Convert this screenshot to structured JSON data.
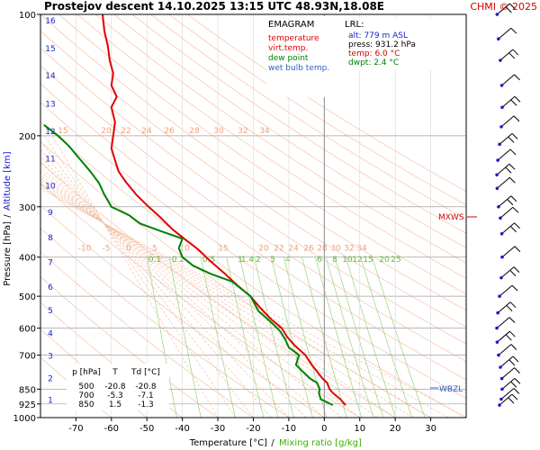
{
  "header": {
    "title": "Prostejov   descent   14.10.2025 13:15 UTC  48.93N,18.08E",
    "copyright": "CHMI © 2025"
  },
  "legend": {
    "title": "EMAGRAM",
    "items": [
      {
        "label": "temperature",
        "color": "#e00000"
      },
      {
        "label": "virt.temp.",
        "color": "#e00000"
      },
      {
        "label": "dew point",
        "color": "#008000"
      },
      {
        "label": "wet bulb temp.",
        "color": "#3060c0"
      }
    ]
  },
  "lrl": {
    "title": "LRL:",
    "rows": [
      {
        "text": "alt: 779 m ASL",
        "color": "#1a1ad0"
      },
      {
        "text": "press: 931.2 hPa",
        "color": "#000000"
      },
      {
        "text": "temp: 6.0 °C",
        "color": "#d00000"
      },
      {
        "text": "dwpt: 2.4 °C",
        "color": "#008000"
      }
    ]
  },
  "table": {
    "headers": [
      "p [hPa]",
      "T",
      "Td [°C]"
    ],
    "rows": [
      [
        "500",
        "-20.8",
        "-20.8"
      ],
      [
        "700",
        "-5.3",
        "-7.1"
      ],
      [
        "850",
        "1.5",
        "-1.3"
      ]
    ]
  },
  "annotations": {
    "mxws": "MXWS",
    "wbzl": "WBZL"
  },
  "chart_data": {
    "type": "line",
    "xlabel": "Temperature [°C]",
    "xlabel_sep": "/",
    "xlabel2": "Mixing ratio [g/kg]",
    "ylabel": "Pressure [hPa]",
    "ylabel_sep": "/",
    "ylabel2": "Altitude [km]",
    "xlim": [
      -80,
      40
    ],
    "ylim": [
      1000,
      100
    ],
    "y_scale": "log",
    "x_ticks": [
      -70,
      -60,
      -50,
      -40,
      -30,
      -20,
      -10,
      0,
      10,
      20,
      30
    ],
    "y_ticks": [
      100,
      200,
      300,
      400,
      500,
      600,
      700,
      850,
      925,
      1000
    ],
    "km_ticks": [
      {
        "label": "1",
        "p": 900
      },
      {
        "label": "2",
        "p": 795
      },
      {
        "label": "3",
        "p": 700
      },
      {
        "label": "4",
        "p": 616
      },
      {
        "label": "5",
        "p": 540
      },
      {
        "label": "6",
        "p": 472
      },
      {
        "label": "7",
        "p": 410
      },
      {
        "label": "8",
        "p": 356
      },
      {
        "label": "9",
        "p": 308
      },
      {
        "label": "10",
        "p": 265
      },
      {
        "label": "11",
        "p": 227
      },
      {
        "label": "12",
        "p": 194
      },
      {
        "label": "13",
        "p": 166
      },
      {
        "label": "14",
        "p": 141
      },
      {
        "label": "15",
        "p": 121
      },
      {
        "label": "16",
        "p": 103
      }
    ],
    "dry_adiabat_labels": {
      "p": 200,
      "labels": [
        "15",
        "20",
        "22",
        "24",
        "26",
        "28",
        "30",
        "32",
        "34"
      ]
    },
    "moist_adiabat_labels": {
      "p": 380,
      "labels": [
        "-10",
        "-5",
        "0",
        "5",
        "10",
        "15",
        "20",
        "22",
        "24",
        "26",
        "28",
        "30",
        "32",
        "34"
      ]
    },
    "mixing_ratio_labels": {
      "p": 420,
      "labels": [
        "0.1",
        "0.2",
        "0.5",
        "1",
        "1.4",
        "2",
        "3",
        "4",
        "6",
        "8",
        "10",
        "12",
        "15",
        "20",
        "25"
      ]
    },
    "series": [
      {
        "name": "temperature",
        "color": "#e00000",
        "points": [
          [
            6.0,
            931
          ],
          [
            4.5,
            900
          ],
          [
            2.5,
            870
          ],
          [
            1.5,
            850
          ],
          [
            0.8,
            820
          ],
          [
            -0.5,
            800
          ],
          [
            -2.5,
            760
          ],
          [
            -4.0,
            730
          ],
          [
            -5.3,
            700
          ],
          [
            -8.5,
            660
          ],
          [
            -10.5,
            630
          ],
          [
            -12.0,
            600
          ],
          [
            -15.0,
            570
          ],
          [
            -18.0,
            535
          ],
          [
            -20.8,
            500
          ],
          [
            -24.5,
            470
          ],
          [
            -28.0,
            440
          ],
          [
            -32.0,
            410
          ],
          [
            -36.0,
            380
          ],
          [
            -39.5,
            360
          ],
          [
            -43.0,
            340
          ],
          [
            -46.0,
            320
          ],
          [
            -49.5,
            300
          ],
          [
            -53.0,
            280
          ],
          [
            -56.0,
            260
          ],
          [
            -58.0,
            245
          ],
          [
            -59.0,
            230
          ],
          [
            -60.0,
            215
          ],
          [
            -59.5,
            200
          ],
          [
            -59.0,
            185
          ],
          [
            -60.0,
            170
          ],
          [
            -58.5,
            160
          ],
          [
            -60.0,
            150
          ],
          [
            -59.5,
            140
          ],
          [
            -60.5,
            130
          ],
          [
            -61.0,
            120
          ],
          [
            -62.0,
            110
          ],
          [
            -62.5,
            100
          ]
        ]
      },
      {
        "name": "dew point",
        "color": "#008000",
        "points": [
          [
            2.4,
            931
          ],
          [
            -1.0,
            900
          ],
          [
            -1.5,
            870
          ],
          [
            -1.3,
            850
          ],
          [
            -2.0,
            820
          ],
          [
            -4.0,
            800
          ],
          [
            -6.0,
            770
          ],
          [
            -8.0,
            740
          ],
          [
            -7.1,
            700
          ],
          [
            -10.0,
            670
          ],
          [
            -11.0,
            640
          ],
          [
            -12.5,
            610
          ],
          [
            -15.0,
            580
          ],
          [
            -18.5,
            545
          ],
          [
            -20.8,
            500
          ],
          [
            -26.0,
            460
          ],
          [
            -32.0,
            440
          ],
          [
            -37.0,
            420
          ],
          [
            -40.0,
            400
          ],
          [
            -41.0,
            380
          ],
          [
            -40.0,
            360
          ],
          [
            -46.0,
            345
          ],
          [
            -52.0,
            330
          ],
          [
            -55.0,
            315
          ],
          [
            -60.0,
            300
          ],
          [
            -62.0,
            280
          ],
          [
            -63.5,
            262
          ],
          [
            -66.0,
            245
          ],
          [
            -69.0,
            228
          ],
          [
            -72.0,
            212
          ],
          [
            -75.0,
            200
          ],
          [
            -79.0,
            188
          ]
        ]
      }
    ],
    "wind_barbs_p": [
      931,
      900,
      850,
      800,
      750,
      700,
      650,
      600,
      550,
      500,
      450,
      400,
      350,
      320,
      300,
      270,
      250,
      230,
      210,
      190,
      170,
      150,
      130,
      115,
      100
    ]
  }
}
